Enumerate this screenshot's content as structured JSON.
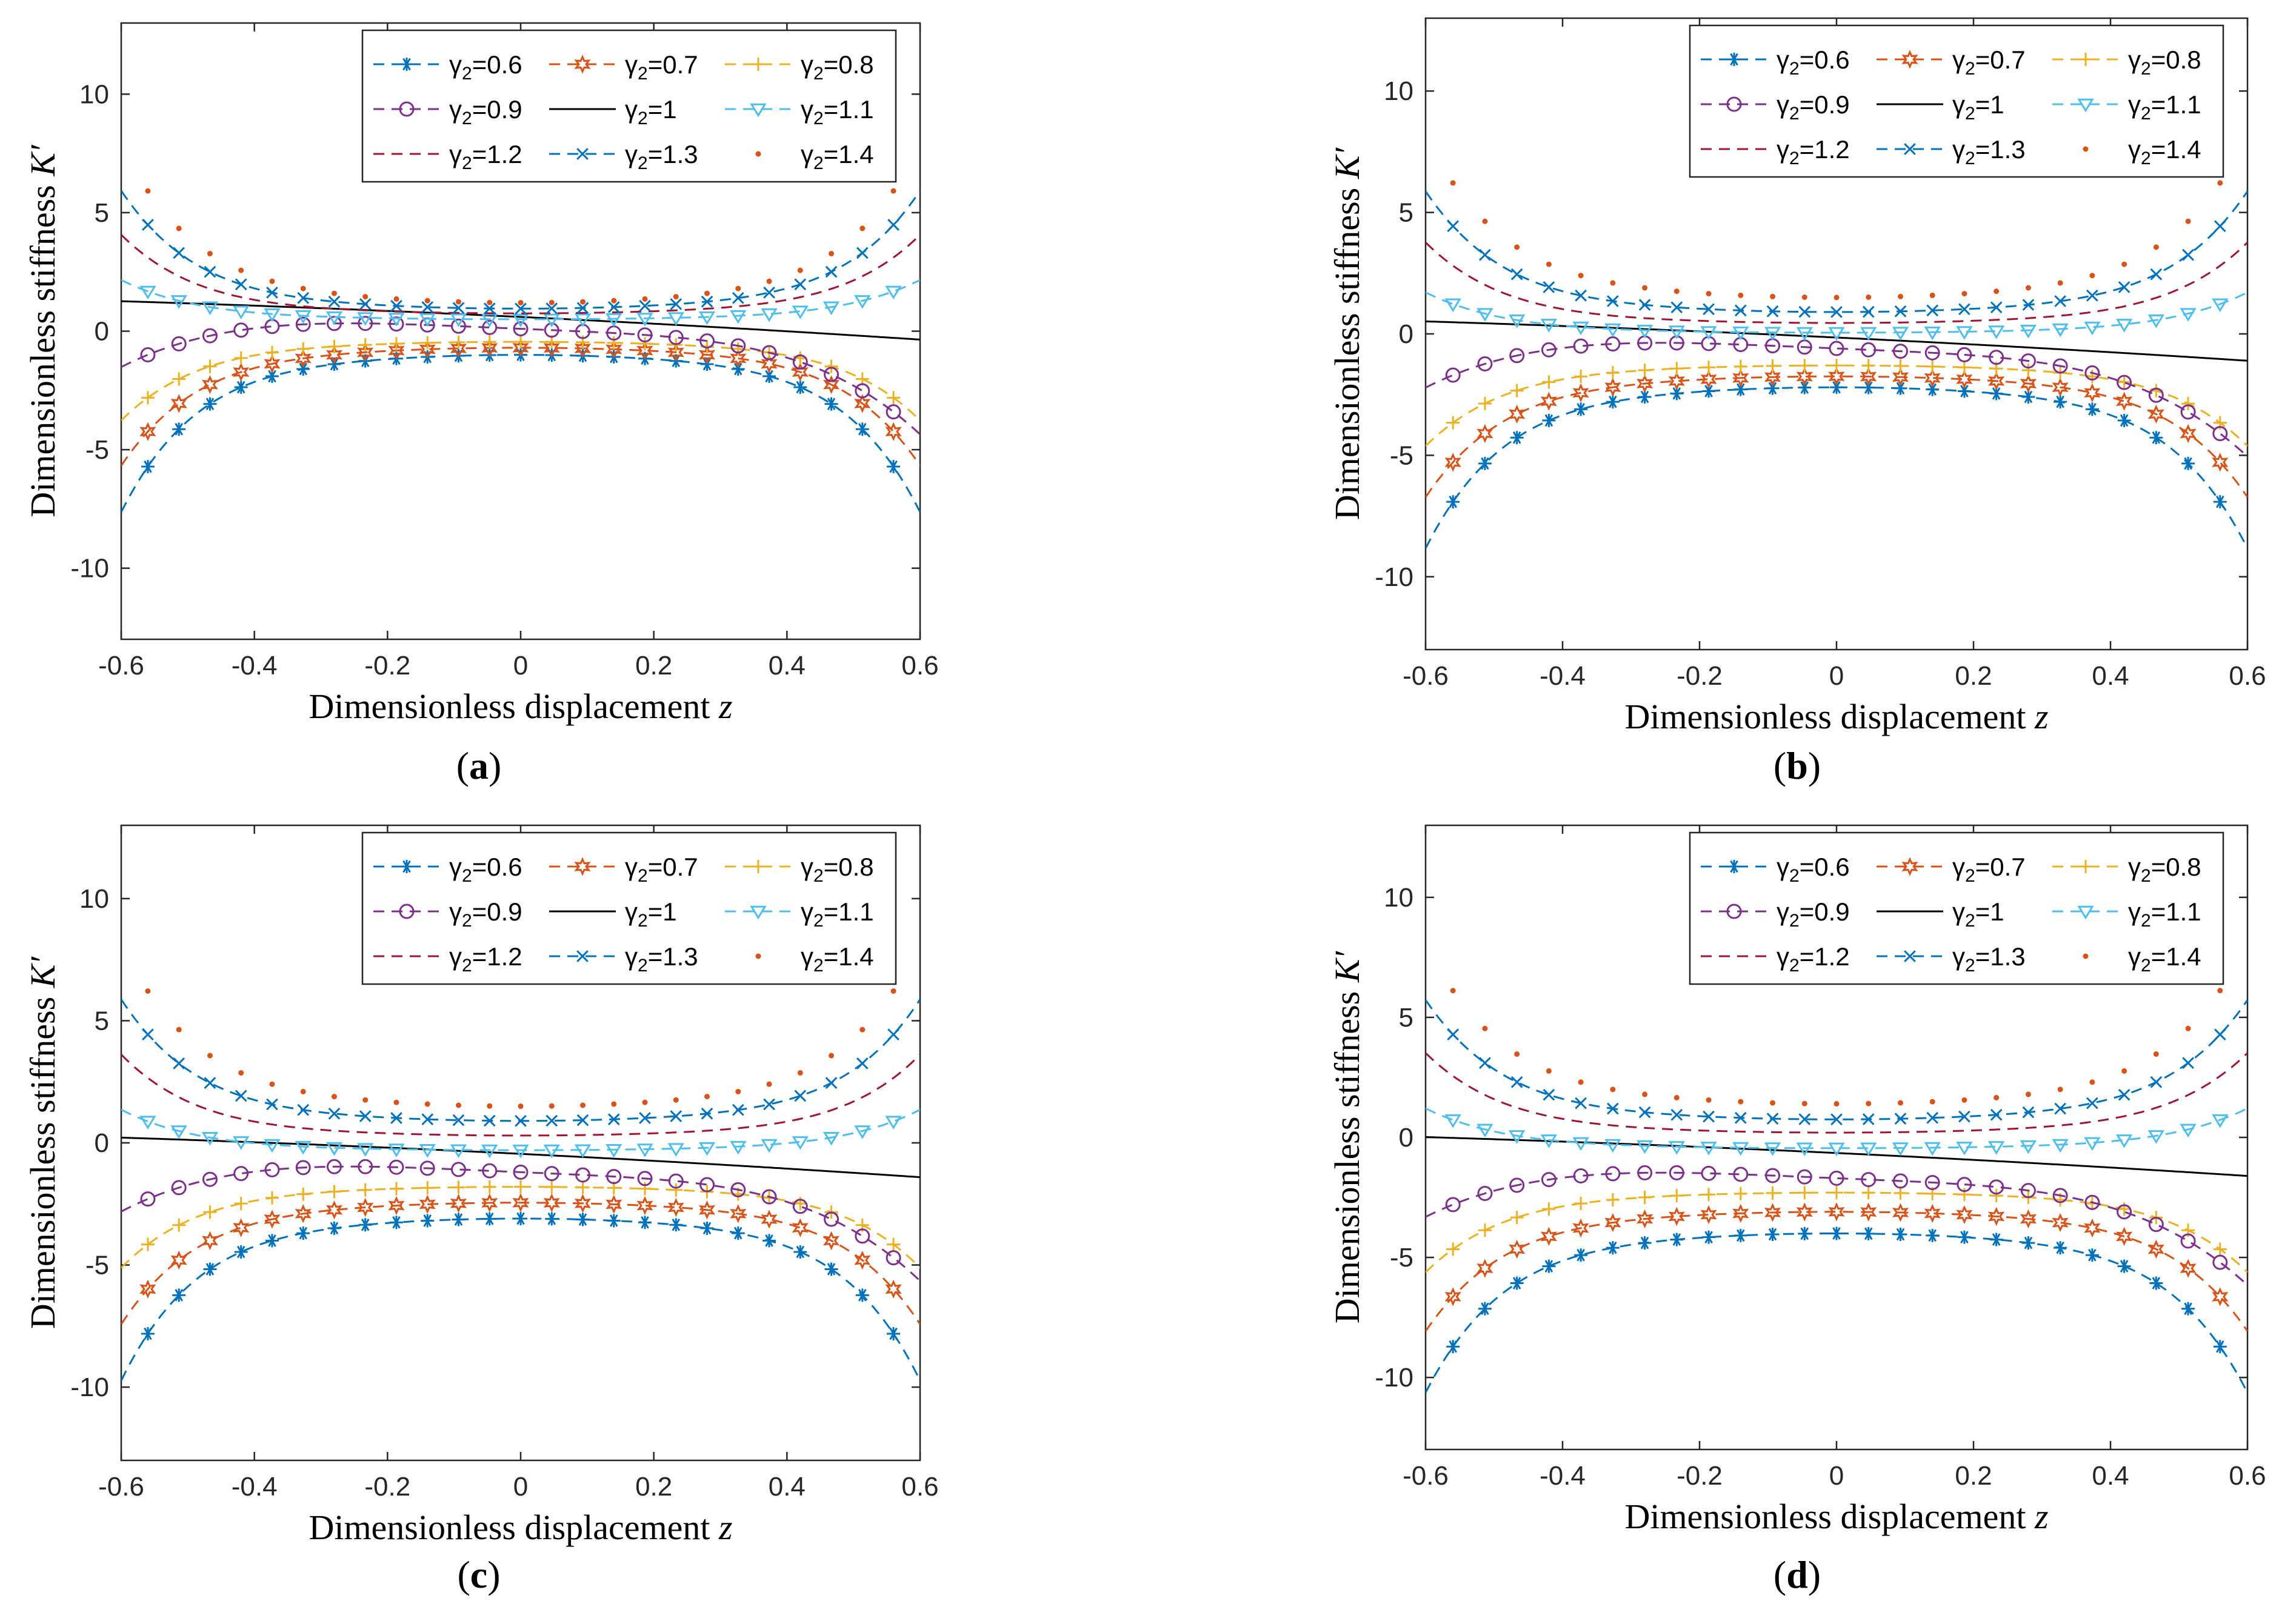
{
  "figure": {
    "panels": [
      "(a)",
      "(b)",
      "(c)",
      "(d)"
    ]
  },
  "colors": {
    "c06": "#0072BD",
    "c07": "#D95319",
    "c08": "#EDB120",
    "c09": "#7E2F8E",
    "c10": "#000000",
    "c11": "#4DBEEE",
    "c12": "#A2142F",
    "c13": "#0072BD",
    "c14": "#D95319"
  },
  "chart_data": [
    {
      "type": "line",
      "panel_label": "(a)",
      "xlabel": "Dimensionless displacement z",
      "ylabel": "Dimensionless stiffness K′",
      "xlim": [
        -0.6,
        0.6
      ],
      "ylim": [
        -13,
        13
      ],
      "xticks": [
        "-0.6",
        "-0.4",
        "-0.2",
        "0",
        "0.2",
        "0.4",
        "0.6"
      ],
      "yticks": [
        "-10",
        "-5",
        "0",
        "5",
        "10"
      ],
      "legend_position": "top-right",
      "series": [
        {
          "name": "γ2=0.6",
          "gamma": 0.6,
          "center": -1.0,
          "slope": 0.0
        },
        {
          "name": "γ2=0.7",
          "gamma": 0.7,
          "center": -0.7,
          "slope": 0.0
        },
        {
          "name": "γ2=0.8",
          "gamma": 0.8,
          "center": -0.45,
          "slope": 0.0
        },
        {
          "name": "γ2=0.9",
          "gamma": 0.9,
          "center": 0.1,
          "slope": -1.35
        },
        {
          "name": "γ2=1",
          "gamma": 1.0,
          "center": 0.6,
          "slope": -1.35
        },
        {
          "name": "γ2=1.1",
          "gamma": 1.1,
          "center": 0.5,
          "slope": 0.0
        },
        {
          "name": "γ2=1.2",
          "gamma": 1.2,
          "center": 0.75,
          "slope": 0.0
        },
        {
          "name": "γ2=1.3",
          "gamma": 1.3,
          "center": 0.95,
          "slope": 0.0
        },
        {
          "name": "γ2=1.4",
          "gamma": 1.4,
          "center": 1.2,
          "slope": 0.0
        }
      ]
    },
    {
      "type": "line",
      "panel_label": "(b)",
      "xlabel": "Dimensionless displacement z",
      "ylabel": "Dimensionless stiffness K′",
      "xlim": [
        -0.6,
        0.6
      ],
      "ylim": [
        -13,
        13
      ],
      "xticks": [
        "-0.6",
        "-0.4",
        "-0.2",
        "0",
        "0.2",
        "0.4",
        "0.6"
      ],
      "yticks": [
        "-10",
        "-5",
        "0",
        "5",
        "10"
      ],
      "legend_position": "top-right",
      "series": [
        {
          "name": "γ2=0.6",
          "gamma": 0.6,
          "center": -2.2,
          "slope": 0.0
        },
        {
          "name": "γ2=0.7",
          "gamma": 0.7,
          "center": -1.75,
          "slope": 0.0
        },
        {
          "name": "γ2=0.8",
          "gamma": 0.8,
          "center": -1.3,
          "slope": 0.0
        },
        {
          "name": "γ2=0.9",
          "gamma": 0.9,
          "center": -0.6,
          "slope": -1.35
        },
        {
          "name": "γ2=1",
          "gamma": 1.0,
          "center": -0.15,
          "slope": -1.35
        },
        {
          "name": "γ2=1.1",
          "gamma": 1.1,
          "center": 0.05,
          "slope": 0.0
        },
        {
          "name": "γ2=1.2",
          "gamma": 1.2,
          "center": 0.45,
          "slope": 0.0
        },
        {
          "name": "γ2=1.3",
          "gamma": 1.3,
          "center": 0.9,
          "slope": 0.0
        },
        {
          "name": "γ2=1.4",
          "gamma": 1.4,
          "center": 1.5,
          "slope": 0.0
        }
      ]
    },
    {
      "type": "line",
      "panel_label": "(c)",
      "xlabel": "Dimensionless displacement z",
      "ylabel": "Dimensionless stiffness K′",
      "xlim": [
        -0.6,
        0.6
      ],
      "ylim": [
        -13,
        13
      ],
      "xticks": [
        "-0.6",
        "-0.4",
        "-0.2",
        "0",
        "0.2",
        "0.4",
        "0.6"
      ],
      "yticks": [
        "-10",
        "-5",
        "0",
        "5",
        "10"
      ],
      "legend_position": "top-right",
      "series": [
        {
          "name": "γ2=0.6",
          "gamma": 0.6,
          "center": -3.1,
          "slope": 0.0
        },
        {
          "name": "γ2=0.7",
          "gamma": 0.7,
          "center": -2.45,
          "slope": 0.0
        },
        {
          "name": "γ2=0.8",
          "gamma": 0.8,
          "center": -1.8,
          "slope": 0.0
        },
        {
          "name": "γ2=0.9",
          "gamma": 0.9,
          "center": -1.2,
          "slope": -1.35
        },
        {
          "name": "γ2=1",
          "gamma": 1.0,
          "center": -0.45,
          "slope": -1.35
        },
        {
          "name": "γ2=1.1",
          "gamma": 1.1,
          "center": -0.3,
          "slope": 0.0
        },
        {
          "name": "γ2=1.2",
          "gamma": 1.2,
          "center": 0.3,
          "slope": 0.0
        },
        {
          "name": "γ2=1.3",
          "gamma": 1.3,
          "center": 0.9,
          "slope": 0.0
        },
        {
          "name": "γ2=1.4",
          "gamma": 1.4,
          "center": 1.5,
          "slope": 0.0
        }
      ]
    },
    {
      "type": "line",
      "panel_label": "(d)",
      "xlabel": "Dimensionless displacement z",
      "ylabel": "Dimensionless stiffness K′",
      "xlim": [
        -0.6,
        0.6
      ],
      "ylim": [
        -13,
        13
      ],
      "xticks": [
        "-0.6",
        "-0.4",
        "-0.2",
        "0",
        "0.2",
        "0.4",
        "0.6"
      ],
      "yticks": [
        "-10",
        "-5",
        "0",
        "5",
        "10"
      ],
      "legend_position": "top-right",
      "series": [
        {
          "name": "γ2=0.6",
          "gamma": 0.6,
          "center": -4.0,
          "slope": 0.0
        },
        {
          "name": "γ2=0.7",
          "gamma": 0.7,
          "center": -3.1,
          "slope": 0.0
        },
        {
          "name": "γ2=0.8",
          "gamma": 0.8,
          "center": -2.3,
          "slope": 0.0
        },
        {
          "name": "γ2=0.9",
          "gamma": 0.9,
          "center": -1.7,
          "slope": -1.35
        },
        {
          "name": "γ2=1",
          "gamma": 1.0,
          "center": -0.65,
          "slope": -1.35
        },
        {
          "name": "γ2=1.1",
          "gamma": 1.1,
          "center": -0.45,
          "slope": 0.0
        },
        {
          "name": "γ2=1.2",
          "gamma": 1.2,
          "center": 0.2,
          "slope": 0.0
        },
        {
          "name": "γ2=1.3",
          "gamma": 1.3,
          "center": 0.75,
          "slope": 0.0
        },
        {
          "name": "γ2=1.4",
          "gamma": 1.4,
          "center": 1.4,
          "slope": 0.0
        }
      ]
    }
  ]
}
